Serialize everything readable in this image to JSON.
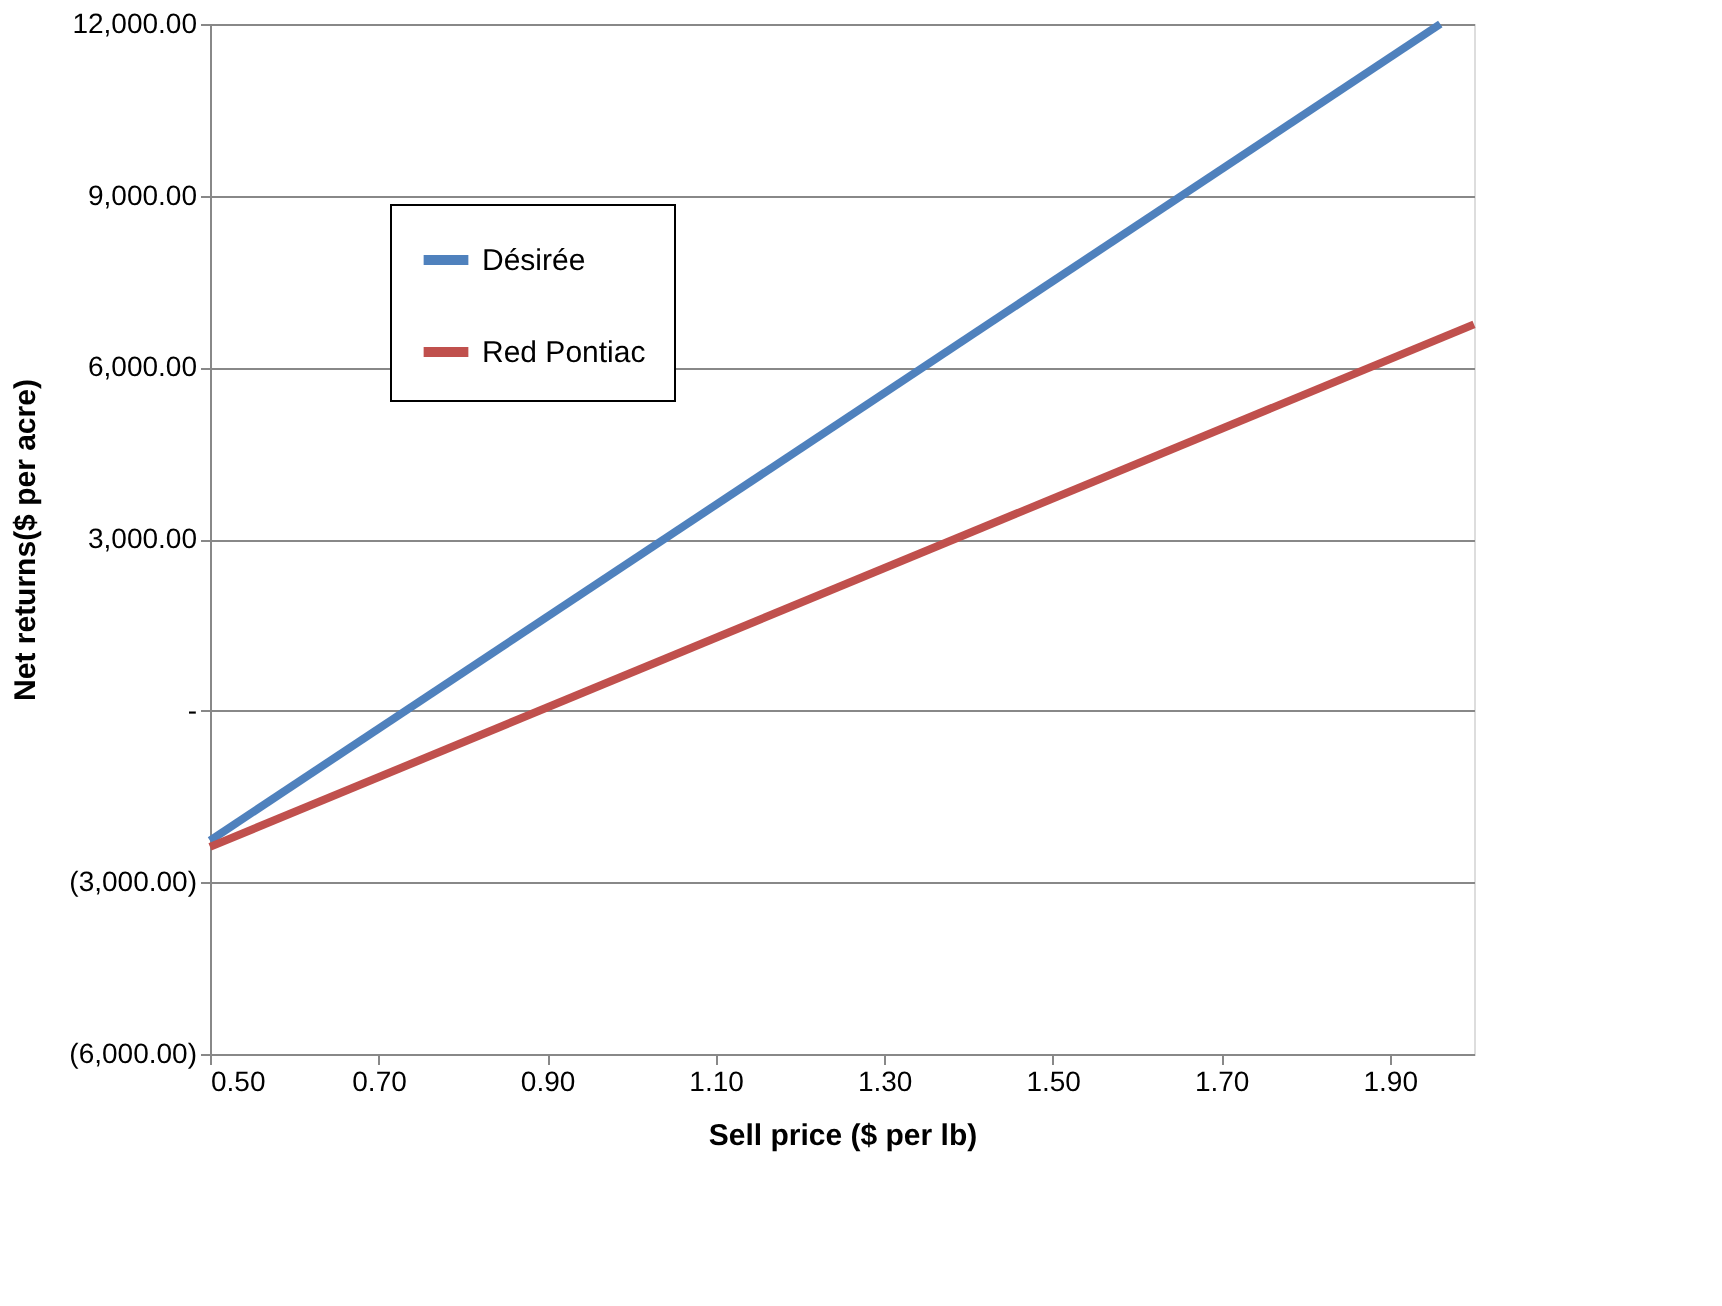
{
  "chart_data": {
    "type": "line",
    "xlabel": "Sell price ($ per lb)",
    "ylabel": "Net returns($ per acre)",
    "series": [
      {
        "name": "Désirée",
        "color": "#4f81bd",
        "x": [
          0.5,
          1.96
        ],
        "values": [
          -2270,
          12000
        ]
      },
      {
        "name": "Red Pontiac",
        "color": "#c0504d",
        "x": [
          0.5,
          2.0
        ],
        "values": [
          -2380,
          6750
        ]
      }
    ],
    "xlim": [
      0.5,
      2.0
    ],
    "xticks": [
      {
        "value": 0.5,
        "label": "0.50"
      },
      {
        "value": 0.7,
        "label": "0.70"
      },
      {
        "value": 0.9,
        "label": "0.90"
      },
      {
        "value": 1.1,
        "label": "1.10"
      },
      {
        "value": 1.3,
        "label": "1.30"
      },
      {
        "value": 1.5,
        "label": "1.50"
      },
      {
        "value": 1.7,
        "label": "1.70"
      },
      {
        "value": 1.9,
        "label": "1.90"
      }
    ],
    "ylim": [
      -6000,
      12000
    ],
    "yticks": [
      {
        "value": -6000,
        "label": "(6,000.00)"
      },
      {
        "value": -3000,
        "label": "(3,000.00)"
      },
      {
        "value": 0,
        "label": "-"
      },
      {
        "value": 3000,
        "label": "3,000.00"
      },
      {
        "value": 6000,
        "label": "6,000.00"
      },
      {
        "value": 9000,
        "label": "9,000.00"
      },
      {
        "value": 12000,
        "label": "12,000.00"
      }
    ],
    "grid": "y",
    "legend": "top left",
    "marker": "none",
    "line_style": "solid"
  }
}
